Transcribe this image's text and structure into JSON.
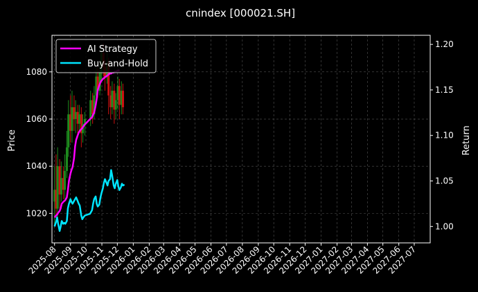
{
  "chart_data": {
    "type": "line",
    "title": "cnindex [000021.SH]",
    "ylabel_left": "Price",
    "ylabel_right": "Return",
    "x_ticks": [
      "2025-08",
      "2025-09",
      "2025-10",
      "2025-11",
      "2025-12",
      "2026-01",
      "2026-02",
      "2026-03",
      "2026-04",
      "2026-05",
      "2026-06",
      "2026-07",
      "2026-08",
      "2026-09",
      "2026-10",
      "2026-11",
      "2026-12",
      "2027-01",
      "2027-02",
      "2027-03",
      "2027-04",
      "2027-05",
      "2027-06",
      "2027-07"
    ],
    "x_range": [
      "2025-07-27",
      "2027-08-01"
    ],
    "y_left": {
      "ticks": [
        1020,
        1040,
        1060,
        1080
      ],
      "range": [
        1007.5,
        1095.5
      ]
    },
    "y_right": {
      "ticks": [
        1.0,
        1.05,
        1.1,
        1.15,
        1.2
      ],
      "range": [
        0.982,
        1.21
      ]
    },
    "grid": true,
    "legend_position": "top-left",
    "colors": {
      "ai": "#ff00ff",
      "bh": "#00e5ff",
      "up": "#1e8c1e",
      "down": "#cc1111",
      "grid": "#555555"
    },
    "series": [
      {
        "name": "AI Strategy",
        "axis": "right",
        "points": [
          [
            "2025-08-01",
            1.01
          ],
          [
            "2025-08-04",
            1.012
          ],
          [
            "2025-08-06",
            1.013
          ],
          [
            "2025-08-08",
            1.015
          ],
          [
            "2025-08-11",
            1.017
          ],
          [
            "2025-08-13",
            1.02
          ],
          [
            "2025-08-15",
            1.025
          ],
          [
            "2025-08-18",
            1.027
          ],
          [
            "2025-08-20",
            1.028
          ],
          [
            "2025-08-22",
            1.029
          ],
          [
            "2025-08-25",
            1.032
          ],
          [
            "2025-08-27",
            1.04
          ],
          [
            "2025-08-29",
            1.05
          ],
          [
            "2025-09-01",
            1.058
          ],
          [
            "2025-09-03",
            1.062
          ],
          [
            "2025-09-05",
            1.065
          ],
          [
            "2025-09-08",
            1.075
          ],
          [
            "2025-09-10",
            1.088
          ],
          [
            "2025-09-12",
            1.095
          ],
          [
            "2025-09-15",
            1.1
          ],
          [
            "2025-09-17",
            1.103
          ],
          [
            "2025-09-19",
            1.105
          ],
          [
            "2025-09-22",
            1.107
          ],
          [
            "2025-09-24",
            1.108
          ],
          [
            "2025-09-26",
            1.11
          ],
          [
            "2025-09-29",
            1.112
          ],
          [
            "2025-10-09",
            1.118
          ],
          [
            "2025-10-13",
            1.12
          ],
          [
            "2025-10-15",
            1.123
          ],
          [
            "2025-10-17",
            1.125
          ],
          [
            "2025-10-20",
            1.133
          ],
          [
            "2025-10-22",
            1.14
          ],
          [
            "2025-10-24",
            1.15
          ],
          [
            "2025-10-27",
            1.155
          ],
          [
            "2025-10-29",
            1.158
          ],
          [
            "2025-10-31",
            1.16
          ],
          [
            "2025-11-03",
            1.162
          ],
          [
            "2025-11-05",
            1.163
          ],
          [
            "2025-11-07",
            1.164
          ],
          [
            "2025-11-10",
            1.165
          ],
          [
            "2025-11-12",
            1.166
          ],
          [
            "2025-11-14",
            1.167
          ],
          [
            "2025-11-17",
            1.168
          ],
          [
            "2025-11-19",
            1.168
          ],
          [
            "2025-11-21",
            1.169
          ],
          [
            "2025-11-24",
            1.169
          ],
          [
            "2025-11-26",
            1.17
          ],
          [
            "2025-11-28",
            1.17
          ],
          [
            "2025-12-01",
            1.171
          ],
          [
            "2025-12-03",
            1.171
          ],
          [
            "2025-12-05",
            1.172
          ]
        ]
      },
      {
        "name": "Buy-and-Hold",
        "axis": "right",
        "points": [
          [
            "2025-08-01",
            1.0
          ],
          [
            "2025-08-04",
            1.005
          ],
          [
            "2025-08-06",
            1.01
          ],
          [
            "2025-08-08",
            1.003
          ],
          [
            "2025-08-11",
            0.995
          ],
          [
            "2025-08-13",
            1.0
          ],
          [
            "2025-08-15",
            1.006
          ],
          [
            "2025-08-18",
            1.003
          ],
          [
            "2025-08-20",
            1.004
          ],
          [
            "2025-08-22",
            1.003
          ],
          [
            "2025-08-25",
            1.006
          ],
          [
            "2025-08-27",
            1.02
          ],
          [
            "2025-08-29",
            1.025
          ],
          [
            "2025-09-01",
            1.03
          ],
          [
            "2025-09-03",
            1.027
          ],
          [
            "2025-09-05",
            1.025
          ],
          [
            "2025-09-08",
            1.028
          ],
          [
            "2025-09-10",
            1.03
          ],
          [
            "2025-09-12",
            1.032
          ],
          [
            "2025-09-15",
            1.028
          ],
          [
            "2025-09-17",
            1.025
          ],
          [
            "2025-09-19",
            1.023
          ],
          [
            "2025-09-22",
            1.012
          ],
          [
            "2025-09-24",
            1.008
          ],
          [
            "2025-09-26",
            1.01
          ],
          [
            "2025-09-29",
            1.012
          ],
          [
            "2025-10-09",
            1.014
          ],
          [
            "2025-10-13",
            1.018
          ],
          [
            "2025-10-15",
            1.025
          ],
          [
            "2025-10-17",
            1.03
          ],
          [
            "2025-10-20",
            1.033
          ],
          [
            "2025-10-22",
            1.025
          ],
          [
            "2025-10-24",
            1.022
          ],
          [
            "2025-10-27",
            1.024
          ],
          [
            "2025-10-29",
            1.031
          ],
          [
            "2025-10-31",
            1.036
          ],
          [
            "2025-11-03",
            1.042
          ],
          [
            "2025-11-05",
            1.048
          ],
          [
            "2025-11-07",
            1.052
          ],
          [
            "2025-11-10",
            1.048
          ],
          [
            "2025-11-12",
            1.045
          ],
          [
            "2025-11-14",
            1.05
          ],
          [
            "2025-11-17",
            1.052
          ],
          [
            "2025-11-19",
            1.062
          ],
          [
            "2025-11-21",
            1.056
          ],
          [
            "2025-11-24",
            1.045
          ],
          [
            "2025-11-26",
            1.042
          ],
          [
            "2025-11-28",
            1.047
          ],
          [
            "2025-12-01",
            1.051
          ],
          [
            "2025-12-03",
            1.044
          ],
          [
            "2025-12-05",
            1.04
          ],
          [
            "2025-12-08",
            1.043
          ],
          [
            "2025-12-10",
            1.047
          ],
          [
            "2025-12-12",
            1.045
          ],
          [
            "2025-12-15",
            1.046
          ]
        ]
      }
    ],
    "candles": [
      [
        "2025-08-01",
        1025,
        1030,
        1015,
        1040
      ],
      [
        "2025-08-04",
        1030,
        1022,
        1018,
        1045
      ],
      [
        "2025-08-07",
        1022,
        1040,
        1018,
        1048
      ],
      [
        "2025-08-11",
        1040,
        1028,
        1022,
        1043
      ],
      [
        "2025-08-14",
        1028,
        1035,
        1025,
        1042
      ],
      [
        "2025-08-18",
        1035,
        1030,
        1026,
        1040
      ],
      [
        "2025-08-21",
        1030,
        1038,
        1026,
        1045
      ],
      [
        "2025-08-25",
        1038,
        1048,
        1035,
        1055
      ],
      [
        "2025-08-28",
        1048,
        1062,
        1044,
        1068
      ],
      [
        "2025-09-01",
        1062,
        1055,
        1050,
        1070
      ],
      [
        "2025-09-04",
        1055,
        1065,
        1050,
        1072
      ],
      [
        "2025-09-08",
        1065,
        1060,
        1055,
        1070
      ],
      [
        "2025-09-11",
        1060,
        1063,
        1054,
        1068
      ],
      [
        "2025-09-15",
        1063,
        1058,
        1052,
        1066
      ],
      [
        "2025-09-18",
        1058,
        1062,
        1055,
        1066
      ],
      [
        "2025-09-22",
        1062,
        1054,
        1048,
        1065
      ],
      [
        "2025-09-25",
        1054,
        1058,
        1050,
        1062
      ],
      [
        "2025-09-29",
        1058,
        1060,
        1053,
        1063
      ],
      [
        "2025-10-10",
        1060,
        1068,
        1057,
        1072
      ],
      [
        "2025-10-14",
        1068,
        1062,
        1058,
        1071
      ],
      [
        "2025-10-17",
        1062,
        1070,
        1060,
        1074
      ],
      [
        "2025-10-21",
        1070,
        1078,
        1066,
        1082
      ],
      [
        "2025-10-24",
        1078,
        1072,
        1069,
        1082
      ],
      [
        "2025-10-28",
        1072,
        1080,
        1070,
        1084
      ],
      [
        "2025-10-31",
        1080,
        1088,
        1076,
        1090
      ],
      [
        "2025-11-04",
        1088,
        1082,
        1078,
        1092
      ],
      [
        "2025-11-07",
        1082,
        1078,
        1072,
        1085
      ],
      [
        "2025-11-11",
        1078,
        1084,
        1075,
        1088
      ],
      [
        "2025-11-14",
        1084,
        1070,
        1062,
        1086
      ],
      [
        "2025-11-18",
        1070,
        1065,
        1060,
        1074
      ],
      [
        "2025-11-21",
        1065,
        1072,
        1062,
        1076
      ],
      [
        "2025-11-25",
        1072,
        1064,
        1058,
        1075
      ],
      [
        "2025-11-28",
        1064,
        1068,
        1060,
        1071
      ],
      [
        "2025-12-02",
        1068,
        1074,
        1064,
        1078
      ],
      [
        "2025-12-05",
        1074,
        1066,
        1060,
        1077
      ],
      [
        "2025-12-09",
        1066,
        1072,
        1062,
        1076
      ],
      [
        "2025-12-12",
        1072,
        1065,
        1062,
        1075
      ]
    ]
  }
}
